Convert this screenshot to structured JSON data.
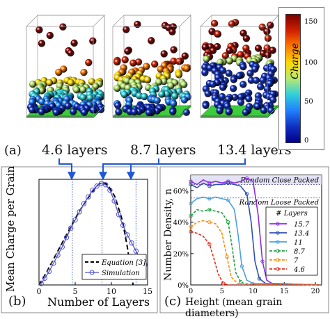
{
  "panel_a": {
    "tag": "(a)",
    "captions": [
      "4.6 layers",
      "8.7 layers",
      "13.4 layers"
    ],
    "colorbar": {
      "label": "Charge",
      "ticks": [
        "150",
        "100",
        "50",
        "0"
      ],
      "colors": [
        "#7a0000",
        "#d02000",
        "#ff7a00",
        "#ffd800",
        "#b8e870",
        "#30d0d8",
        "#2080ff",
        "#1030c0",
        "#00008a"
      ]
    }
  },
  "chart_data": [
    {
      "type": "line",
      "panel": "(b)",
      "xlabel": "Number of Layers",
      "ylabel": "Mean Charge per Grain",
      "xlim": [
        0,
        15
      ],
      "ylim": [
        0,
        78
      ],
      "xticks": [
        "0",
        "5",
        "10",
        "15"
      ],
      "vlines": [
        4.6,
        8.7,
        13.4
      ],
      "legend": {
        "position": "bottom-right"
      },
      "series": [
        {
          "name": "Equation [3]",
          "style": "dashed",
          "color": "#000000",
          "x": [
            0,
            1,
            2,
            3,
            4,
            5,
            6,
            7,
            8,
            8.7,
            9.5,
            10.5,
            11.5,
            12.2,
            12.7,
            13.0
          ],
          "y": [
            0,
            9,
            19,
            29,
            39,
            49,
            58,
            66,
            73,
            76,
            74,
            65,
            48,
            28,
            10,
            0
          ]
        },
        {
          "name": "Simulation",
          "style": "solid-markers",
          "color": "#5050d0",
          "x": [
            0.3,
            0.8,
            1.4,
            2.0,
            2.6,
            3.2,
            3.8,
            4.4,
            5.0,
            5.6,
            6.2,
            6.8,
            7.4,
            8.0,
            8.6,
            9.2,
            9.8,
            10.4,
            11.0,
            11.6,
            12.2,
            12.8,
            13.4,
            14.0,
            14.6
          ],
          "y": [
            1,
            5,
            10,
            16,
            22,
            28,
            35,
            42,
            48,
            54,
            60,
            65,
            70,
            73,
            75,
            74,
            70,
            62,
            52,
            44,
            37,
            31,
            25,
            19,
            15
          ]
        }
      ]
    },
    {
      "type": "line",
      "panel": "(c)",
      "xlabel": "Height (mean grain diameters)",
      "ylabel": "Number Density, n",
      "xlim": [
        0,
        21
      ],
      "ylim": [
        0,
        0.7
      ],
      "xticks": [
        "0",
        "5",
        "10",
        "15",
        "20"
      ],
      "yticks": [
        "0%",
        "20%",
        "40%",
        "60%"
      ],
      "annotations": [
        {
          "text": "Random Close Packed",
          "y": 0.64
        },
        {
          "text": "Random Loose Packed",
          "y": 0.555
        }
      ],
      "legend": {
        "title": "# Layers",
        "position": "right"
      },
      "series": [
        {
          "name": "15.7",
          "style": "solid",
          "color": "#8a2be2",
          "x": [
            0,
            1,
            2,
            3,
            4,
            5,
            6,
            7,
            8,
            9,
            10,
            10.8,
            11.5,
            12.2,
            13,
            21
          ],
          "y": [
            0.66,
            0.64,
            0.67,
            0.65,
            0.66,
            0.65,
            0.66,
            0.65,
            0.66,
            0.68,
            0.66,
            0.45,
            0.15,
            0.03,
            0.01,
            0.0
          ]
        },
        {
          "name": "13.4",
          "style": "solid",
          "color": "#3050b0",
          "x": [
            0,
            1,
            2,
            3,
            4,
            5,
            6,
            7,
            8,
            9,
            9.7,
            10.3,
            11,
            12,
            21
          ],
          "y": [
            0.64,
            0.62,
            0.65,
            0.63,
            0.64,
            0.64,
            0.65,
            0.64,
            0.63,
            0.58,
            0.4,
            0.15,
            0.04,
            0.01,
            0.0
          ]
        },
        {
          "name": "11",
          "style": "solid",
          "color": "#4aa0e0",
          "x": [
            0,
            1,
            2,
            3,
            4,
            5,
            6,
            7,
            7.6,
            8.2,
            9,
            10,
            21
          ],
          "y": [
            0.52,
            0.55,
            0.56,
            0.55,
            0.56,
            0.55,
            0.54,
            0.48,
            0.32,
            0.12,
            0.03,
            0.01,
            0.0
          ]
        },
        {
          "name": "8.7",
          "style": "dashed",
          "color": "#20a040",
          "x": [
            0,
            1,
            2,
            3,
            4,
            5,
            6,
            6.6,
            7.2,
            8,
            9,
            21
          ],
          "y": [
            0.44,
            0.48,
            0.47,
            0.48,
            0.47,
            0.46,
            0.4,
            0.25,
            0.08,
            0.02,
            0.0,
            0.0
          ]
        },
        {
          "name": "7",
          "style": "dashed",
          "color": "#ff8c00",
          "x": [
            0,
            1,
            2,
            3,
            4,
            5,
            5.8,
            6.5,
            7.5,
            21
          ],
          "y": [
            0.37,
            0.4,
            0.41,
            0.4,
            0.39,
            0.33,
            0.18,
            0.05,
            0.01,
            0.0
          ]
        },
        {
          "name": "4.6",
          "style": "dashed",
          "color": "#e03020",
          "x": [
            0,
            1,
            2,
            3,
            3.7,
            4.4,
            5.2,
            6,
            21
          ],
          "y": [
            0.34,
            0.33,
            0.31,
            0.26,
            0.17,
            0.07,
            0.01,
            0.0,
            0.0
          ]
        }
      ]
    }
  ]
}
